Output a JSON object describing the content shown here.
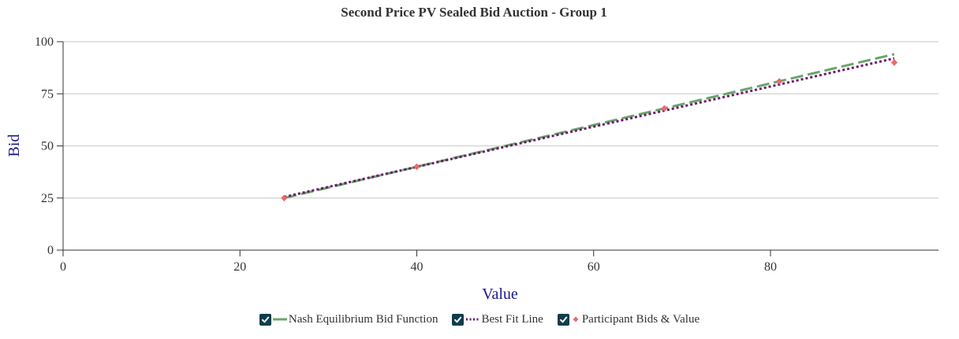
{
  "chart_data": {
    "type": "line",
    "title": "Second Price PV Sealed Bid Auction - Group 1",
    "xlabel": "Value",
    "ylabel": "Bid",
    "xlim": [
      0,
      99
    ],
    "ylim": [
      0,
      100
    ],
    "xticks": [
      0,
      20,
      40,
      60,
      80
    ],
    "yticks": [
      0,
      25,
      50,
      75,
      100
    ],
    "grid": "horizontal",
    "legend_position": "bottom",
    "series": [
      {
        "name": "Nash Equilibrium Bid Function",
        "kind": "line",
        "style": "dashed",
        "color": "#6aa56a",
        "x": [
          25,
          94
        ],
        "y": [
          25,
          94
        ]
      },
      {
        "name": "Best Fit Line",
        "kind": "line",
        "style": "dotted",
        "color": "#6b1a6b",
        "x": [
          25,
          94
        ],
        "y": [
          25.5,
          92
        ]
      },
      {
        "name": "Participant Bids & Value",
        "kind": "scatter",
        "marker": "diamond",
        "color": "#e86a6a",
        "x": [
          25,
          40,
          68,
          81,
          94
        ],
        "y": [
          25,
          40,
          68,
          81,
          90
        ]
      }
    ]
  },
  "legend": {
    "checkbox_color": "#0f3d4c",
    "items": [
      {
        "label": "Nash Equilibrium Bid Function",
        "checked": true,
        "icon": "check-icon"
      },
      {
        "label": "Best Fit Line",
        "checked": true,
        "icon": "check-icon"
      },
      {
        "label": "Participant Bids & Value",
        "checked": true,
        "icon": "check-icon"
      }
    ]
  }
}
